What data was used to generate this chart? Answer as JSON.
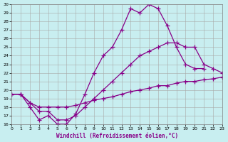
{
  "xlabel": "Windchill (Refroidissement éolien,°C)",
  "color": "#880088",
  "bg_color": "#c8eef0",
  "grid_color": "#a8a8a8",
  "ylim": [
    16,
    30
  ],
  "xlim": [
    0,
    23
  ],
  "marker": "+",
  "markersize": 4,
  "linewidth": 0.9,
  "lines_x": [
    [
      0,
      1,
      2,
      3,
      4,
      5,
      6,
      7,
      8,
      9,
      10,
      11,
      12,
      13,
      14,
      15,
      16,
      17,
      18,
      19,
      20,
      21
    ],
    [
      0,
      1,
      2,
      3,
      4,
      5,
      6,
      7,
      8,
      9,
      10,
      11,
      12,
      13,
      14,
      15,
      16,
      17,
      18,
      19,
      20,
      21,
      22,
      23
    ],
    [
      0,
      1,
      2,
      3,
      4,
      5,
      6,
      7,
      8,
      9,
      10,
      11,
      12,
      13,
      14,
      15,
      16,
      17,
      18,
      19,
      20,
      21,
      22,
      23
    ]
  ],
  "lines_y": [
    [
      19.5,
      19.5,
      18.0,
      16.5,
      17.0,
      16.0,
      16.0,
      17.2,
      19.5,
      22.0,
      24.0,
      25.0,
      27.0,
      29.5,
      29.0,
      30.0,
      29.5,
      27.5,
      25.0,
      23.0,
      22.5,
      22.5
    ],
    [
      19.5,
      19.5,
      18.5,
      17.5,
      17.5,
      16.5,
      16.5,
      17.0,
      18.0,
      19.0,
      20.0,
      21.0,
      22.0,
      23.0,
      24.0,
      24.5,
      25.0,
      25.5,
      25.5,
      25.0,
      25.0,
      23.0,
      22.5,
      22.0
    ],
    [
      19.5,
      19.5,
      18.5,
      18.0,
      18.0,
      18.0,
      18.0,
      18.2,
      18.5,
      18.8,
      19.0,
      19.2,
      19.5,
      19.8,
      20.0,
      20.2,
      20.5,
      20.5,
      20.8,
      21.0,
      21.0,
      21.2,
      21.3,
      21.5
    ]
  ]
}
